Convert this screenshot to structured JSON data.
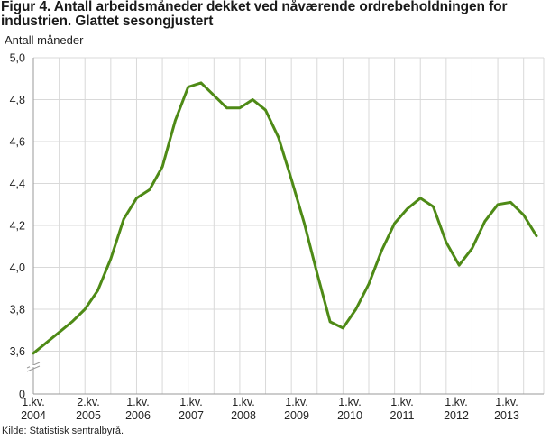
{
  "title": "Figur 4. Antall arbeidsmåneder dekket ved nåværende ordrebeholdningen for industrien. Glattet sesongjustert",
  "source": "Kilde: Statistisk sentralbyrå.",
  "colors": {
    "line": "#4e8a16",
    "grid": "#d9d9d9",
    "axis": "#9a9a9a"
  },
  "chart_data": {
    "type": "line",
    "title": "Figur 4. Antall arbeidsmåneder dekket ved nåværende ordrebeholdningen for industrien. Glattet sesongjustert",
    "ylabel": "Antall måneder",
    "xlabel": "",
    "ylim": [
      3.6,
      5.0
    ],
    "y_axis_break": true,
    "y_ticks": [
      "5,0",
      "4,8",
      "4,6",
      "4,4",
      "4,2",
      "4,0",
      "3,8",
      "3,6",
      "0"
    ],
    "x_ticks": [
      {
        "line1": "1.kv.",
        "line2": "2004"
      },
      {
        "line1": "2.kv.",
        "line2": "2005"
      },
      {
        "line1": "1.kv.",
        "line2": "2006"
      },
      {
        "line1": "1.kv.",
        "line2": "2007"
      },
      {
        "line1": "1.kv.",
        "line2": "2008"
      },
      {
        "line1": "1.kv.",
        "line2": "2009"
      },
      {
        "line1": "1.kv.",
        "line2": "2010"
      },
      {
        "line1": "1.kv.",
        "line2": "2011"
      },
      {
        "line1": "1.kv.",
        "line2": "2012"
      },
      {
        "line1": "1.kv.",
        "line2": "2013"
      }
    ],
    "grid": true,
    "series": [
      {
        "values": [
          3.59,
          3.64,
          3.69,
          3.74,
          3.8,
          3.89,
          4.04,
          4.23,
          4.33,
          4.37,
          4.48,
          4.7,
          4.86,
          4.88,
          4.82,
          4.76,
          4.76,
          4.8,
          4.75,
          4.62,
          4.42,
          4.21,
          3.97,
          3.74,
          3.71,
          3.8,
          3.92,
          4.08,
          4.21,
          4.28,
          4.33,
          4.29,
          4.12,
          4.01,
          4.09,
          4.22,
          4.3,
          4.31,
          4.25,
          4.15
        ]
      }
    ]
  }
}
